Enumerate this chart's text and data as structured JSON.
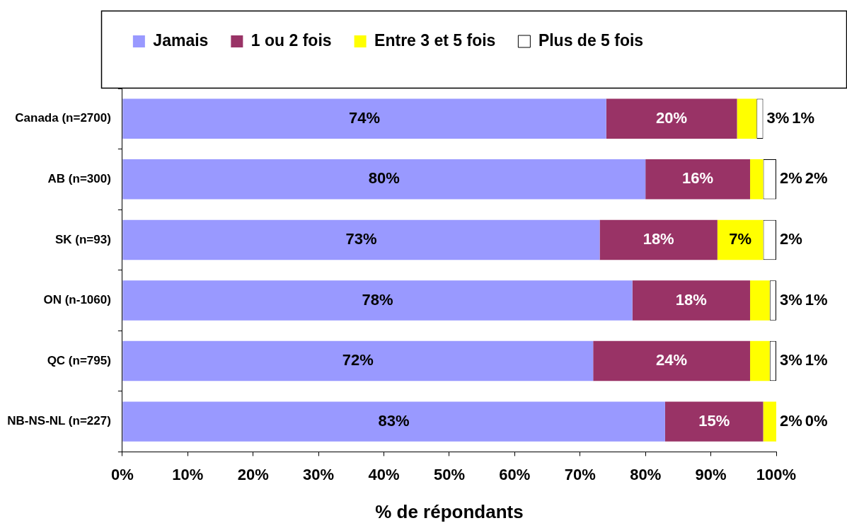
{
  "chart_data": {
    "type": "bar",
    "orientation": "horizontal",
    "stacked": true,
    "xlabel": "% de répondants",
    "legend": "top",
    "categories": [
      "Canada (n=2700)",
      "AB (n=300)",
      "SK (n=93)",
      "ON (n-1060)",
      "QC (n=795)",
      "NB-NS-NL (n=227)"
    ],
    "series": [
      {
        "name": "Jamais",
        "color": "#9999ff",
        "values": [
          74,
          80,
          73,
          78,
          72,
          83
        ],
        "value_labels": [
          "74%",
          "80%",
          "73%",
          "78%",
          "72%",
          "83%"
        ]
      },
      {
        "name": "1 ou 2 fois",
        "color": "#993366",
        "values": [
          20,
          16,
          18,
          18,
          24,
          15
        ],
        "value_labels": [
          "20%",
          "16%",
          "18%",
          "18%",
          "24%",
          "15%"
        ]
      },
      {
        "name": "Entre 3 et 5 fois",
        "color": "#ffff00",
        "values": [
          3,
          2,
          7,
          3,
          3,
          2
        ],
        "value_labels": [
          "3%",
          "2%",
          "7%",
          "3%",
          "3%",
          "2%"
        ]
      },
      {
        "name": "Plus de 5 fois",
        "color": "#ffffff",
        "values": [
          1,
          2,
          2,
          1,
          1,
          0
        ],
        "value_labels": [
          "1%",
          "2%",
          "2%",
          "1%",
          "1%",
          "0%"
        ]
      }
    ],
    "xlim": [
      0,
      100
    ],
    "xticks": [
      {
        "value": 0,
        "label": "0%"
      },
      {
        "value": 10,
        "label": "10%"
      },
      {
        "value": 20,
        "label": "20%"
      },
      {
        "value": 30,
        "label": "30%"
      },
      {
        "value": 40,
        "label": "40%"
      },
      {
        "value": 50,
        "label": "50%"
      },
      {
        "value": 60,
        "label": "60%"
      },
      {
        "value": 70,
        "label": "70%"
      },
      {
        "value": 80,
        "label": "80%"
      },
      {
        "value": 90,
        "label": "90%"
      },
      {
        "value": 100,
        "label": "100%"
      }
    ]
  }
}
